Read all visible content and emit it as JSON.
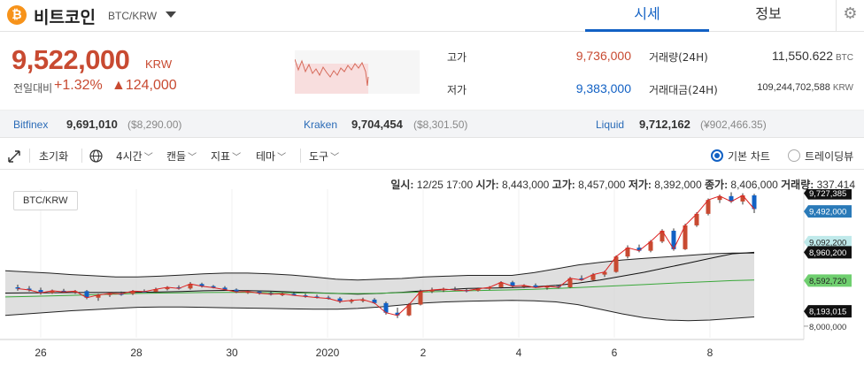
{
  "header": {
    "coin_logo": "₿",
    "coin_name": "비트코인",
    "pair": "BTC/KRW",
    "tabs": [
      "시세",
      "정보"
    ],
    "settings_icon": "gear-icon"
  },
  "price": {
    "current": "9,522,000",
    "unit": "KRW",
    "change_label": "전일대비",
    "change_pct": "+1.32%",
    "change_amt": "▲124,000"
  },
  "stats": {
    "high_label": "고가",
    "high": "9,736,000",
    "low_label": "저가",
    "low": "9,383,000",
    "volume_label": "거래량(24H)",
    "volume": "11,550.622",
    "volume_unit": "BTC",
    "amount_label": "거래대금(24H)",
    "amount": "109,244,702,588",
    "amount_unit": "KRW"
  },
  "exchanges": [
    {
      "name": "Bitfinex",
      "price": "9,691,010",
      "sub": "($8,290.00)"
    },
    {
      "name": "Kraken",
      "price": "9,704,454",
      "sub": "($8,301.50)"
    },
    {
      "name": "Liquid",
      "price": "9,712,162",
      "sub": "(¥902,466.35)"
    }
  ],
  "toolbar": {
    "expand_icon": "expand-icon",
    "reset": "초기화",
    "globe_icon": "globe-icon",
    "interval": "4시간",
    "candle": "캔들",
    "indicator": "지표",
    "theme": "테마",
    "tools": "도구",
    "basic_chart": "기본 차트",
    "tradingview": "트레이딩뷰"
  },
  "ohlc": {
    "date_label": "일시:",
    "date": "12/25 17:00",
    "open_label": "시가:",
    "open": "8,443,000",
    "high_label": "고가:",
    "high": "8,457,000",
    "low_label": "저가:",
    "low": "8,392,000",
    "close_label": "종가:",
    "close": "8,406,000",
    "vol_label": "거래량:",
    "vol": "337.414"
  },
  "colors": {
    "up": "#c84a31",
    "down": "#1261c4",
    "accent": "#1261c4",
    "btc": "#f7931a"
  },
  "chart_data": {
    "type": "line",
    "pair_label": "BTC/KRW",
    "x_labels": [
      "26",
      "28",
      "30",
      "2020",
      "2",
      "4",
      "6",
      "8"
    ],
    "y_range": [
      7850000,
      9780000
    ],
    "price_tags": [
      {
        "value": "9,727,385",
        "num": 9727385,
        "color": "#111111"
      },
      {
        "value": "9,492,000",
        "num": 9492000,
        "color": "#2a7ab8"
      },
      {
        "value": "9,092,200",
        "num": 9092200,
        "color": "#bfe9ea"
      },
      {
        "value": "8,960,200",
        "num": 8960200,
        "color": "#111111"
      },
      {
        "value": "8,592,720",
        "num": 8592720,
        "color": "#6fcf6f"
      },
      {
        "value": "8,193,015",
        "num": 8193015,
        "color": "#111111"
      }
    ],
    "axis_tick": {
      "value": "8,000,000",
      "num": 8000000
    },
    "candles": [
      [
        8505000,
        8540000,
        8460000,
        8488000
      ],
      [
        8488000,
        8520000,
        8450000,
        8470000
      ],
      [
        8470000,
        8500000,
        8410000,
        8432000
      ],
      [
        8432000,
        8476000,
        8420000,
        8460000
      ],
      [
        8460000,
        8485000,
        8440000,
        8444000
      ],
      [
        8444000,
        8470000,
        8420000,
        8455000
      ],
      [
        8455000,
        8470000,
        8350000,
        8370000
      ],
      [
        8370000,
        8420000,
        8330000,
        8405000
      ],
      [
        8405000,
        8440000,
        8380000,
        8425000
      ],
      [
        8425000,
        8450000,
        8395000,
        8420000
      ],
      [
        8420000,
        8470000,
        8405000,
        8455000
      ],
      [
        8455000,
        8478000,
        8440000,
        8448000
      ],
      [
        8448000,
        8500000,
        8435000,
        8480000
      ],
      [
        8480000,
        8520000,
        8465000,
        8505000
      ],
      [
        8505000,
        8530000,
        8475000,
        8490000
      ],
      [
        8490000,
        8572000,
        8475000,
        8548000
      ],
      [
        8548000,
        8565000,
        8502000,
        8520000
      ],
      [
        8520000,
        8535000,
        8490000,
        8500000
      ],
      [
        8500000,
        8520000,
        8465000,
        8475000
      ],
      [
        8475000,
        8490000,
        8430000,
        8445000
      ],
      [
        8445000,
        8470000,
        8420000,
        8450000
      ],
      [
        8450000,
        8465000,
        8410000,
        8428000
      ],
      [
        8428000,
        8450000,
        8398000,
        8415000
      ],
      [
        8415000,
        8438000,
        8390000,
        8420000
      ],
      [
        8420000,
        8440000,
        8395000,
        8400000
      ],
      [
        8400000,
        8425000,
        8370000,
        8385000
      ],
      [
        8385000,
        8410000,
        8360000,
        8372000
      ],
      [
        8372000,
        8395000,
        8345000,
        8360000
      ],
      [
        8360000,
        8380000,
        8300000,
        8320000
      ],
      [
        8320000,
        8355000,
        8295000,
        8335000
      ],
      [
        8335000,
        8370000,
        8310000,
        8345000
      ],
      [
        8345000,
        8365000,
        8290000,
        8300000
      ],
      [
        8300000,
        8320000,
        8150000,
        8175000
      ],
      [
        8175000,
        8240000,
        8105000,
        8140000
      ],
      [
        8140000,
        8300000,
        8130000,
        8280000
      ],
      [
        8280000,
        8475000,
        8270000,
        8450000
      ],
      [
        8450000,
        8500000,
        8430000,
        8470000
      ],
      [
        8470000,
        8500000,
        8445000,
        8482000
      ],
      [
        8482000,
        8510000,
        8460000,
        8470000
      ],
      [
        8470000,
        8488000,
        8440000,
        8460000
      ],
      [
        8460000,
        8500000,
        8450000,
        8485000
      ],
      [
        8485000,
        8520000,
        8470000,
        8505000
      ],
      [
        8505000,
        8585000,
        8490000,
        8570000
      ],
      [
        8570000,
        8590000,
        8505000,
        8520000
      ],
      [
        8520000,
        8545000,
        8495000,
        8530000
      ],
      [
        8530000,
        8555000,
        8495000,
        8500000
      ],
      [
        8500000,
        8530000,
        8475000,
        8520000
      ],
      [
        8520000,
        8540000,
        8490000,
        8505000
      ],
      [
        8505000,
        8640000,
        8495000,
        8622000
      ],
      [
        8622000,
        8660000,
        8590000,
        8600000
      ],
      [
        8600000,
        8690000,
        8590000,
        8670000
      ],
      [
        8670000,
        8720000,
        8640000,
        8705000
      ],
      [
        8705000,
        8920000,
        8695000,
        8905000
      ],
      [
        8905000,
        9050000,
        8880000,
        9020000
      ],
      [
        9020000,
        9060000,
        8960000,
        8980000
      ],
      [
        8980000,
        9120000,
        8960000,
        9100000
      ],
      [
        9100000,
        9260000,
        9080000,
        9240000
      ],
      [
        9240000,
        9270000,
        8980000,
        9000000
      ],
      [
        9000000,
        9330000,
        8990000,
        9310000
      ],
      [
        9310000,
        9480000,
        9290000,
        9460000
      ],
      [
        9460000,
        9660000,
        9440000,
        9640000
      ],
      [
        9640000,
        9710000,
        9600000,
        9690000
      ],
      [
        9690000,
        9740000,
        9600000,
        9620000
      ],
      [
        9620000,
        9727000,
        9580000,
        9700000
      ],
      [
        9700000,
        9720000,
        9470000,
        9522000
      ]
    ],
    "bb_upper": [
      8720000,
      8705000,
      8690000,
      8670000,
      8655000,
      8640000,
      8640000,
      8650000,
      8665000,
      8680000,
      8690000,
      8690000,
      8680000,
      8665000,
      8640000,
      8610000,
      8600000,
      8610000,
      8620000,
      8640000,
      8650000,
      8660000,
      8660000,
      8660000,
      8695000,
      8745000,
      8795000,
      8830000,
      8860000,
      8880000,
      8900000,
      8920000,
      8940000,
      8950000,
      8950000
    ],
    "bb_lower": [
      8140000,
      8160000,
      8180000,
      8200000,
      8215000,
      8230000,
      8245000,
      8250000,
      8250000,
      8245000,
      8240000,
      8235000,
      8230000,
      8225000,
      8220000,
      8220000,
      8230000,
      8250000,
      8275000,
      8300000,
      8315000,
      8325000,
      8330000,
      8335000,
      8330000,
      8315000,
      8280000,
      8220000,
      8160000,
      8110000,
      8080000,
      8070000,
      8080000,
      8100000,
      8120000
    ],
    "bb_mid": [
      8430000,
      8432000,
      8435000,
      8437000,
      8437000,
      8438000,
      8440000,
      8445000,
      8450000,
      8460000,
      8465000,
      8462000,
      8455000,
      8445000,
      8435000,
      8425000,
      8415000,
      8425000,
      8440000,
      8460000,
      8475000,
      8490000,
      8495000,
      8500000,
      8510000,
      8530000,
      8560000,
      8600000,
      8650000,
      8700000,
      8760000,
      8820000,
      8880000,
      8940000,
      8960000
    ],
    "ma_green": [
      8380000,
      8385000,
      8392000,
      8400000,
      8408000,
      8416000,
      8425000,
      8430000,
      8434000,
      8437000,
      8438000,
      8438000,
      8436000,
      8434000,
      8430000,
      8426000,
      8423000,
      8428000,
      8436000,
      8444000,
      8452000,
      8460000,
      8466000,
      8472000,
      8480000,
      8490000,
      8502000,
      8515000,
      8528000,
      8540000,
      8555000,
      8568000,
      8580000,
      8592000,
      8600000
    ]
  }
}
